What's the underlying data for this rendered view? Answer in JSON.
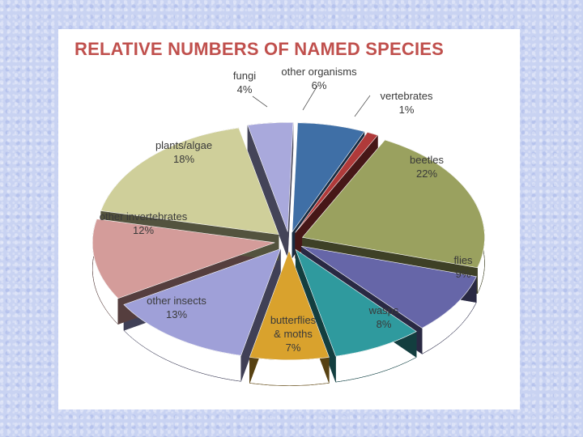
{
  "chart_data": {
    "type": "pie",
    "title": "RELATIVE NUMBERS OF NAMED SPECIES",
    "unit": "%",
    "slices": [
      {
        "label": "other organisms",
        "value": 6,
        "color": "#3f6fa6"
      },
      {
        "label": "vertebrates",
        "value": 1,
        "color": "#b03a3a"
      },
      {
        "label": "beetles",
        "value": 22,
        "color": "#9aa15f"
      },
      {
        "label": "flies",
        "value": 9,
        "color": "#6666a8"
      },
      {
        "label": "wasps",
        "value": 8,
        "color": "#2f9a9e"
      },
      {
        "label": "butterflies\n& moths",
        "value": 7,
        "color": "#d9a22d"
      },
      {
        "label": "other insects",
        "value": 13,
        "color": "#9fa0d8"
      },
      {
        "label": "other invertebrates",
        "value": 12,
        "color": "#d49c9a"
      },
      {
        "label": "plants/algae",
        "value": 18,
        "color": "#cfcf9a"
      },
      {
        "label": "fungi",
        "value": 4,
        "color": "#a9a9dc"
      }
    ]
  },
  "colors": {
    "title": "#c0504d",
    "background": "#c9d3f2",
    "panel": "#ffffff"
  }
}
